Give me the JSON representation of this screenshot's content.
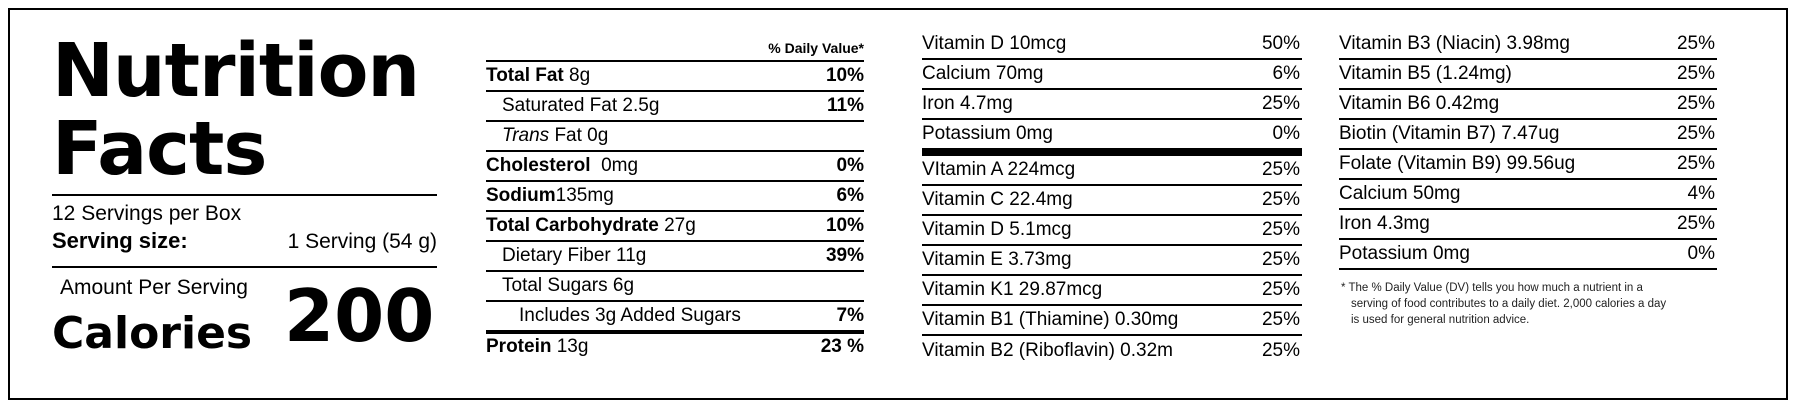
{
  "title_line1": "Nutrition",
  "title_line2": "Facts",
  "servings_per_container": "12 Servings per Box",
  "serving_size_label": "Serving size:",
  "serving_size_value": "1 Serving (54 g)",
  "amount_per_serving": "Amount Per Serving",
  "calories_label": "Calories",
  "calories_value": "200",
  "daily_value_header": "% Daily Value*",
  "nutrients": [
    {
      "name": "Total Fat",
      "amount": "8g",
      "dv": "10%"
    },
    {
      "name": "Saturated Fat",
      "amount": "2.5g",
      "dv": "11%"
    },
    {
      "name": "Trans",
      "amount": "Fat 0g",
      "dv": ""
    },
    {
      "name": "Cholesterol",
      "amount": "0mg",
      "dv": "0%"
    },
    {
      "name": "Sodium",
      "amount": "135mg",
      "dv": "6%"
    },
    {
      "name": "Total Carbohydrate",
      "amount": "27g",
      "dv": "10%"
    },
    {
      "name": "Dietary Fiber",
      "amount": "11g",
      "dv": "39%"
    },
    {
      "name": "Total Sugars",
      "amount": "6g",
      "dv": ""
    },
    {
      "name": "Includes 3g Added Sugars",
      "amount": "",
      "dv": "7%"
    },
    {
      "name": "Protein",
      "amount": "13g",
      "dv": "23 %"
    }
  ],
  "vitamins_col1": [
    {
      "label": "Vitamin D 10mcg",
      "dv": "50%"
    },
    {
      "label": "Calcium 70mg",
      "dv": "6%"
    },
    {
      "label": "Iron 4.7mg",
      "dv": "25%"
    },
    {
      "label": "Potassium 0mg",
      "dv": "0%"
    },
    {
      "label": "VItamin A 224mcg",
      "dv": "25%"
    },
    {
      "label": "Vitamin C 22.4mg",
      "dv": "25%"
    },
    {
      "label": "Vitamin D 5.1mcg",
      "dv": "25%"
    },
    {
      "label": "Vitamin E 3.73mg",
      "dv": "25%"
    },
    {
      "label": "Vitamin K1 29.87mcg",
      "dv": "25%"
    },
    {
      "label": "Vitamin B1 (Thiamine) 0.30mg",
      "dv": "25%"
    },
    {
      "label": "Vitamin B2 (Riboflavin) 0.32m",
      "dv": "25%"
    }
  ],
  "vitamins_col2": [
    {
      "label": "Vitamin B3 (Niacin) 3.98mg",
      "dv": "25%"
    },
    {
      "label": "Vitamin B5 (1.24mg)",
      "dv": "25%"
    },
    {
      "label": "Vitamin B6 0.42mg",
      "dv": "25%"
    },
    {
      "label": "Biotin (Vitamin B7) 7.47ug",
      "dv": "25%"
    },
    {
      "label": "Folate (Vitamin B9) 99.56ug",
      "dv": "25%"
    },
    {
      "label": "Calcium 50mg",
      "dv": "4%"
    },
    {
      "label": "Iron 4.3mg",
      "dv": "25%"
    },
    {
      "label": "Potassium 0mg",
      "dv": "0%"
    }
  ],
  "footnote_line1": "* The % Daily Value (DV) tells you how much a nutrient in a",
  "footnote_line2": "serving of food contributes to a daily diet. 2,000 calories a day",
  "footnote_line3": "is used for general nutrition advice."
}
